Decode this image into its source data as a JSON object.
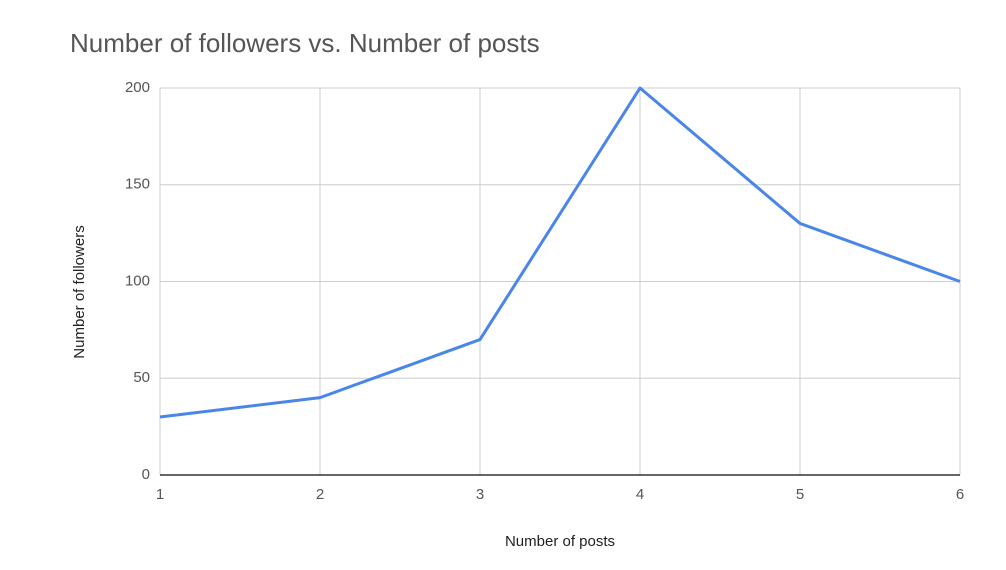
{
  "chart_data": {
    "type": "line",
    "title": "Number of followers vs. Number of posts",
    "x_label": "Number of posts",
    "y_label": "Number of followers",
    "x": [
      1,
      2,
      3,
      4,
      5,
      6
    ],
    "series": [
      {
        "name": "Number of followers",
        "color": "#4a86e8",
        "values": [
          30,
          40,
          70,
          200,
          130,
          100
        ]
      }
    ],
    "xlim": [
      1,
      6
    ],
    "xticks": [
      1,
      2,
      3,
      4,
      5,
      6
    ],
    "ylim": [
      0,
      200
    ],
    "yticks": [
      0,
      50,
      100,
      150,
      200
    ],
    "grid": true
  }
}
